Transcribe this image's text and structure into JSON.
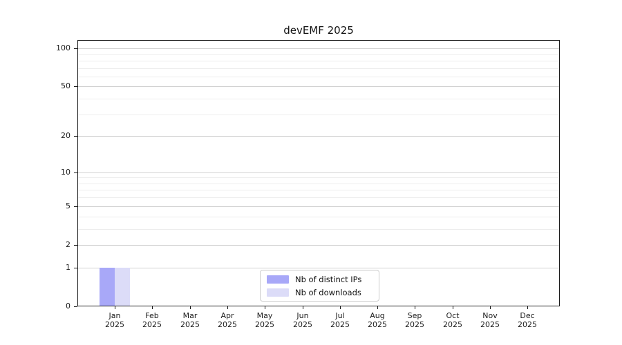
{
  "chart_data": {
    "type": "bar",
    "title": "devEMF 2025",
    "x_categories": [
      {
        "label": "Jan",
        "sublabel": "2025"
      },
      {
        "label": "Feb",
        "sublabel": "2025"
      },
      {
        "label": "Mar",
        "sublabel": "2025"
      },
      {
        "label": "Apr",
        "sublabel": "2025"
      },
      {
        "label": "May",
        "sublabel": "2025"
      },
      {
        "label": "Jun",
        "sublabel": "2025"
      },
      {
        "label": "Jul",
        "sublabel": "2025"
      },
      {
        "label": "Aug",
        "sublabel": "2025"
      },
      {
        "label": "Sep",
        "sublabel": "2025"
      },
      {
        "label": "Oct",
        "sublabel": "2025"
      },
      {
        "label": "Nov",
        "sublabel": "2025"
      },
      {
        "label": "Dec",
        "sublabel": "2025"
      }
    ],
    "series": [
      {
        "name": "Nb of distinct IPs",
        "color": "#a8a8f8",
        "values": [
          1,
          0,
          0,
          0,
          0,
          0,
          0,
          0,
          0,
          0,
          0,
          0
        ]
      },
      {
        "name": "Nb of downloads",
        "color": "#dcdcf8",
        "values": [
          1,
          0,
          0,
          0,
          0,
          0,
          0,
          0,
          0,
          0,
          0,
          0
        ]
      }
    ],
    "y_axis": {
      "scale": "log1p",
      "tick_values": [
        0,
        1,
        2,
        5,
        10,
        20,
        50,
        100
      ],
      "tick_labels": [
        "0",
        "1",
        "2",
        "5",
        "10",
        "20",
        "50",
        "100"
      ],
      "minor_gridline_values": [
        3,
        4,
        6,
        7,
        8,
        9,
        30,
        40,
        60,
        70,
        80,
        90
      ],
      "ylim": [
        0,
        116
      ]
    },
    "grid": "horizontal",
    "legend_position": "inside-bottom-center"
  },
  "colors": {
    "background": "#ffffff",
    "axis": "#1a1a1a",
    "major_grid": "#d0d0d0",
    "minor_grid": "#ececec",
    "legend_border": "#cccccc",
    "text": "#111111"
  }
}
